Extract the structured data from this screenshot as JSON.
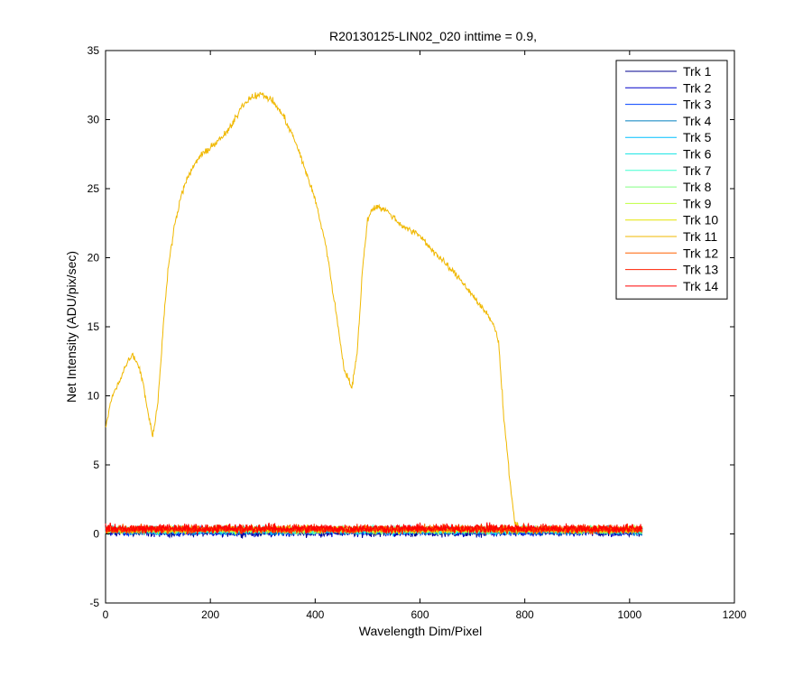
{
  "chart_data": {
    "type": "line",
    "title": "R20130125-LIN02_020 inttime = 0.9,",
    "xlabel": "Wavelength Dim/Pixel",
    "ylabel": "Net Intensity (ADU/pix/sec)",
    "xlim": [
      0,
      1200
    ],
    "ylim": [
      -5,
      35
    ],
    "x_ticks": [
      0,
      200,
      400,
      600,
      800,
      1000,
      1200
    ],
    "y_ticks": [
      -5,
      0,
      5,
      10,
      15,
      20,
      25,
      30,
      35
    ],
    "x_tick_labels": [
      "0",
      "200",
      "400",
      "600",
      "800",
      "1000",
      "1200"
    ],
    "y_tick_labels": [
      "-5",
      "0",
      "5",
      "10",
      "15",
      "20",
      "25",
      "30",
      "35"
    ],
    "grid": false,
    "legend_position": "top-right",
    "x_range": [
      0,
      1024
    ],
    "series": [
      {
        "name": "Trk 1",
        "color": "#00008f",
        "baseline": 0.1,
        "noise": 0.45
      },
      {
        "name": "Trk 2",
        "color": "#0000c8",
        "baseline": 0.15,
        "noise": 0.45
      },
      {
        "name": "Trk 3",
        "color": "#0040ff",
        "baseline": 0.2,
        "noise": 0.45
      },
      {
        "name": "Trk 4",
        "color": "#007fbf",
        "baseline": 0.2,
        "noise": 0.4
      },
      {
        "name": "Trk 5",
        "color": "#00bfff",
        "baseline": 0.25,
        "noise": 0.4
      },
      {
        "name": "Trk 6",
        "color": "#20e6e6",
        "baseline": 0.25,
        "noise": 0.4
      },
      {
        "name": "Trk 7",
        "color": "#40ffd0",
        "baseline": 0.3,
        "noise": 0.4
      },
      {
        "name": "Trk 8",
        "color": "#80ff80",
        "baseline": 0.3,
        "noise": 0.4
      },
      {
        "name": "Trk 9",
        "color": "#bfff40",
        "baseline": 0.3,
        "noise": 0.4
      },
      {
        "name": "Trk 10",
        "color": "#e6e600",
        "baseline": 0.3,
        "noise": 0.4
      },
      {
        "name": "Trk 11",
        "color": "#f0b800",
        "points": [
          [
            0,
            7.6
          ],
          [
            10,
            9.6
          ],
          [
            20,
            10.6
          ],
          [
            30,
            11.4
          ],
          [
            40,
            12.3
          ],
          [
            50,
            13.0
          ],
          [
            60,
            12.5
          ],
          [
            70,
            11.3
          ],
          [
            80,
            9.0
          ],
          [
            90,
            7.1
          ],
          [
            100,
            9.5
          ],
          [
            110,
            15.0
          ],
          [
            120,
            19.5
          ],
          [
            130,
            22.0
          ],
          [
            140,
            23.8
          ],
          [
            150,
            25.2
          ],
          [
            160,
            26.0
          ],
          [
            170,
            26.8
          ],
          [
            180,
            27.3
          ],
          [
            200,
            28.0
          ],
          [
            220,
            28.6
          ],
          [
            240,
            29.5
          ],
          [
            260,
            31.0
          ],
          [
            280,
            31.7
          ],
          [
            300,
            31.8
          ],
          [
            320,
            31.3
          ],
          [
            340,
            30.2
          ],
          [
            360,
            28.6
          ],
          [
            380,
            26.5
          ],
          [
            400,
            24.2
          ],
          [
            420,
            21.0
          ],
          [
            440,
            16.0
          ],
          [
            455,
            12.0
          ],
          [
            470,
            10.6
          ],
          [
            480,
            13.0
          ],
          [
            490,
            19.0
          ],
          [
            500,
            22.8
          ],
          [
            510,
            23.6
          ],
          [
            520,
            23.7
          ],
          [
            540,
            23.3
          ],
          [
            560,
            22.5
          ],
          [
            580,
            22.0
          ],
          [
            600,
            21.6
          ],
          [
            620,
            20.7
          ],
          [
            640,
            19.9
          ],
          [
            660,
            19.1
          ],
          [
            680,
            18.3
          ],
          [
            700,
            17.3
          ],
          [
            720,
            16.3
          ],
          [
            740,
            15.2
          ],
          [
            750,
            13.9
          ],
          [
            760,
            8.5
          ],
          [
            770,
            4.5
          ],
          [
            780,
            1.0
          ],
          [
            790,
            0.3
          ],
          [
            820,
            0.3
          ],
          [
            860,
            0.3
          ],
          [
            900,
            0.3
          ],
          [
            950,
            0.3
          ],
          [
            1024,
            0.3
          ]
        ],
        "noise": 0.35
      },
      {
        "name": "Trk 12",
        "color": "#ff6000",
        "baseline": 0.35,
        "noise": 0.45
      },
      {
        "name": "Trk 13",
        "color": "#ff2000",
        "baseline": 0.35,
        "noise": 0.45
      },
      {
        "name": "Trk 14",
        "color": "#ff0000",
        "baseline": 0.4,
        "noise": 0.5
      }
    ]
  }
}
